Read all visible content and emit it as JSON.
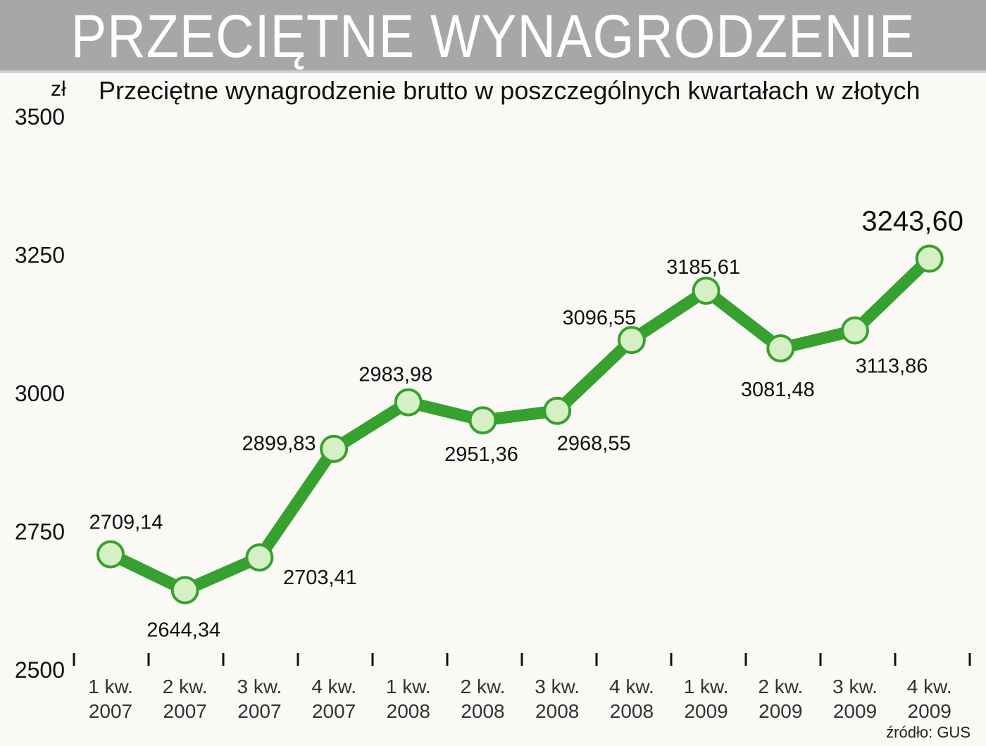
{
  "header": {
    "title": "PRZECIĘTNE WYNAGRODZENIE"
  },
  "unit_label": "zł",
  "source": "źródło: GUS",
  "colors": {
    "line": "#36a12e",
    "marker_fill": "#d6efc4",
    "marker_stroke": "#36a12e",
    "header_bg": "#a7a7a7"
  },
  "chart_data": {
    "type": "line",
    "title": "Przeciętne wynagrodzenie brutto w poszczególnych kwartałach w złotych",
    "ylabel": "zł",
    "ylim": [
      2500,
      3500
    ],
    "yticks": [
      "2500",
      "2750",
      "3000",
      "3250",
      "3500"
    ],
    "grid": false,
    "categories": [
      [
        "1 kw.",
        "2007"
      ],
      [
        "2 kw.",
        "2007"
      ],
      [
        "3 kw.",
        "2007"
      ],
      [
        "4 kw.",
        "2007"
      ],
      [
        "1 kw.",
        "2008"
      ],
      [
        "2 kw.",
        "2008"
      ],
      [
        "3 kw.",
        "2008"
      ],
      [
        "4 kw.",
        "2008"
      ],
      [
        "1 kw.",
        "2009"
      ],
      [
        "2 kw.",
        "2009"
      ],
      [
        "3 kw.",
        "2009"
      ],
      [
        "4 kw.",
        "2009"
      ]
    ],
    "values": [
      2709.14,
      2644.34,
      2703.41,
      2899.83,
      2983.98,
      2951.36,
      2968.55,
      3096.55,
      3185.61,
      3081.48,
      3113.86,
      3243.6
    ],
    "labels": [
      "2709,14",
      "2644,34",
      "2703,41",
      "2899,83",
      "2983,98",
      "2951,36",
      "2968,55",
      "3096,55",
      "3185,61",
      "3081,48",
      "3113,86",
      "3243,60"
    ]
  }
}
